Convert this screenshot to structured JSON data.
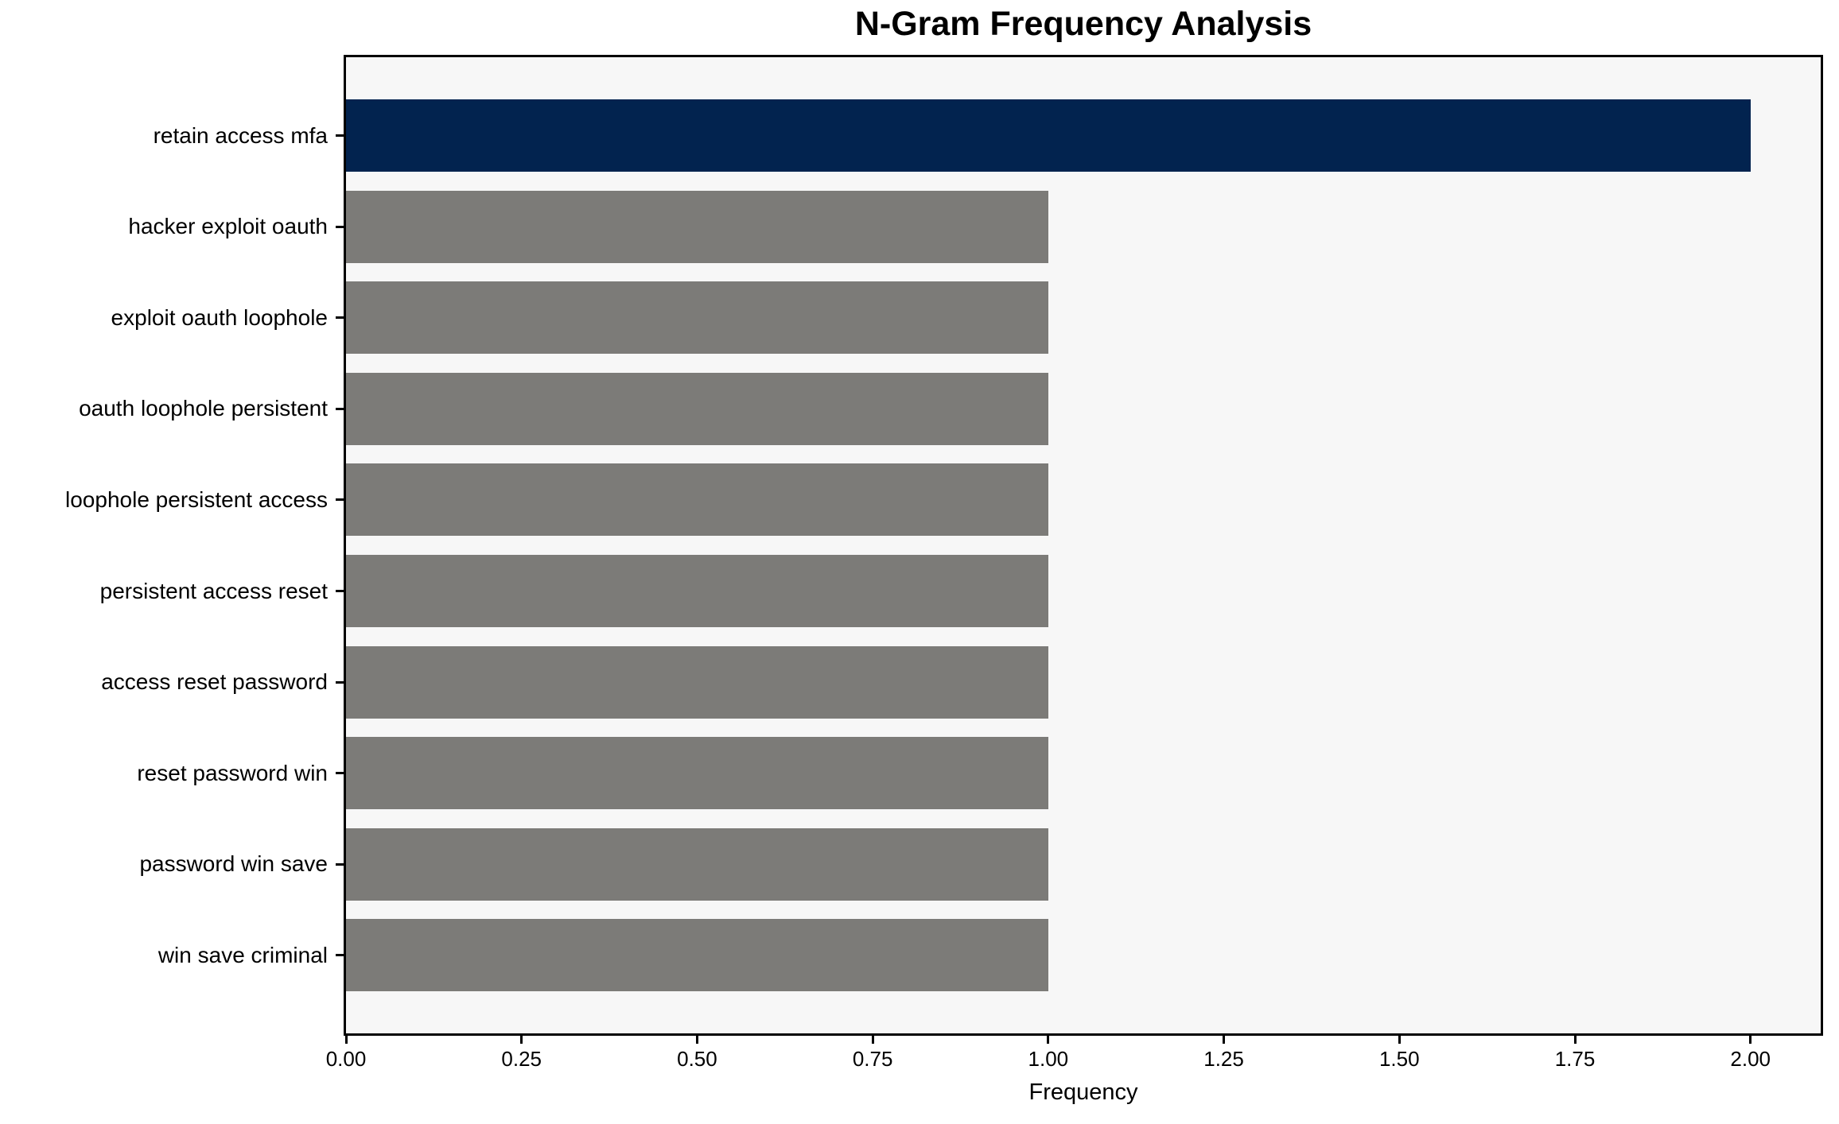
{
  "figure": {
    "title": "N-Gram Frequency Analysis",
    "xlabel": "Frequency"
  },
  "chart_data": {
    "type": "bar",
    "orientation": "horizontal",
    "title": "N-Gram Frequency Analysis",
    "xlabel": "Frequency",
    "ylabel": "",
    "categories": [
      "retain access mfa",
      "hacker exploit oauth",
      "exploit oauth loophole",
      "oauth loophole persistent",
      "loophole persistent access",
      "persistent access reset",
      "access reset password",
      "reset password win",
      "password win save",
      "win save criminal"
    ],
    "values": [
      2,
      1,
      1,
      1,
      1,
      1,
      1,
      1,
      1,
      1
    ],
    "xlim": [
      0,
      2.1
    ],
    "xticks": [
      0,
      0.25,
      0.5,
      0.75,
      1.0,
      1.25,
      1.5,
      1.75,
      2.0
    ],
    "xtick_labels": [
      "0.00",
      "0.25",
      "0.50",
      "0.75",
      "1.00",
      "1.25",
      "1.50",
      "1.75",
      "2.00"
    ],
    "grid": false,
    "legend_position": "none",
    "bar_colors": [
      "#02234f",
      "#7c7b78",
      "#7c7b78",
      "#7c7b78",
      "#7c7b78",
      "#7c7b78",
      "#7c7b78",
      "#7c7b78",
      "#7c7b78",
      "#7c7b78"
    ],
    "highlight_color": "#02234f",
    "default_bar_color": "#7c7b78",
    "plot_background": "#f7f7f7",
    "figure_background": "#ffffff",
    "spine_color": "#000000",
    "text_color": "#000000"
  }
}
